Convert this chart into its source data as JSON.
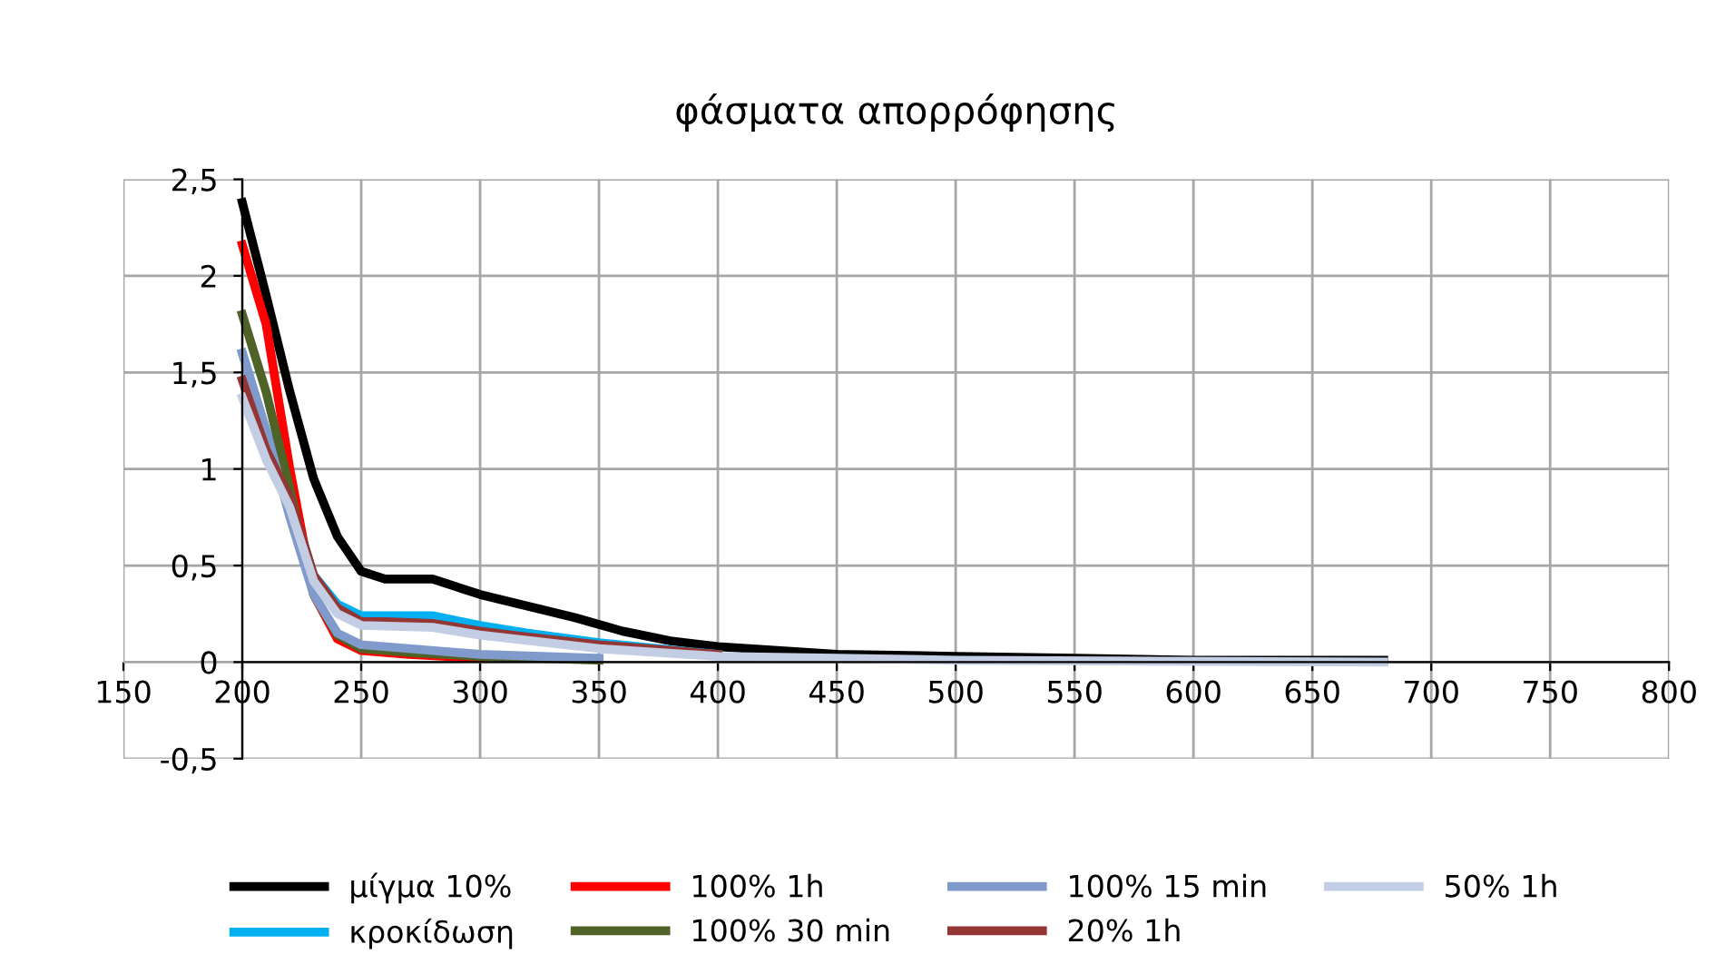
{
  "chart_data": {
    "type": "line",
    "title": "φάσματα απορρόφησης",
    "xlim": [
      150,
      800
    ],
    "xticks": [
      150,
      200,
      250,
      300,
      350,
      400,
      450,
      500,
      550,
      600,
      650,
      700,
      750,
      800
    ],
    "ylim": [
      -0.5,
      2.5
    ],
    "yticks": [
      {
        "value": -0.5,
        "label": "-0,5"
      },
      0,
      {
        "value": 0.5,
        "label": "0,5"
      },
      1,
      {
        "value": 1.5,
        "label": "1,5"
      },
      2,
      {
        "value": 2.5,
        "label": "2,5"
      }
    ],
    "grid": true,
    "legend": "bottom",
    "marker": "none",
    "line_style": "solid",
    "series": [
      {
        "name": "μίγμα 10%",
        "color": "#000000",
        "x": [
          200,
          210,
          220,
          230,
          240,
          250,
          260,
          270,
          280,
          290,
          300,
          320,
          340,
          360,
          380,
          400,
          450,
          500,
          550,
          600,
          680
        ],
        "values": [
          2.38,
          1.9,
          1.4,
          0.95,
          0.65,
          0.47,
          0.43,
          0.43,
          0.43,
          0.39,
          0.35,
          0.29,
          0.23,
          0.16,
          0.11,
          0.08,
          0.04,
          0.03,
          0.02,
          0.01,
          0.01
        ]
      },
      {
        "name": "κροκίδωση",
        "color": "#00b0f0",
        "x": [
          200,
          210,
          220,
          230,
          240,
          250,
          260,
          270,
          280,
          300,
          320,
          350,
          400
        ],
        "values": [
          1.6,
          1.2,
          0.85,
          0.45,
          0.3,
          0.24,
          0.24,
          0.24,
          0.24,
          0.19,
          0.15,
          0.1,
          0.04
        ]
      },
      {
        "name": "100% 1h",
        "color": "#ff0000",
        "x": [
          200,
          210,
          220,
          230,
          240,
          250,
          270,
          300
        ],
        "values": [
          2.16,
          1.75,
          1.0,
          0.35,
          0.12,
          0.06,
          0.04,
          0.02
        ]
      },
      {
        "name": "100% 30 min",
        "color": "#4f6228",
        "x": [
          200,
          210,
          220,
          230,
          240,
          250,
          270,
          300,
          350
        ],
        "values": [
          1.8,
          1.4,
          0.9,
          0.35,
          0.14,
          0.07,
          0.05,
          0.03,
          0.01
        ]
      },
      {
        "name": "100% 15 min",
        "color": "#7f9acb",
        "x": [
          200,
          210,
          220,
          230,
          240,
          250,
          270,
          300,
          350
        ],
        "values": [
          1.6,
          1.2,
          0.75,
          0.35,
          0.15,
          0.09,
          0.07,
          0.04,
          0.02
        ]
      },
      {
        "name": "20% 1h",
        "color": "#943634",
        "x": [
          200,
          210,
          220,
          230,
          240,
          250,
          260,
          280,
          300,
          320,
          350,
          400
        ],
        "values": [
          1.46,
          1.1,
          0.85,
          0.45,
          0.28,
          0.21,
          0.21,
          0.2,
          0.16,
          0.13,
          0.09,
          0.04
        ]
      },
      {
        "name": "50% 1h",
        "color": "#c3cde3",
        "x": [
          200,
          210,
          220,
          230,
          240,
          250,
          280,
          300,
          350,
          400,
          450,
          500,
          680
        ],
        "values": [
          1.37,
          1.05,
          0.8,
          0.42,
          0.25,
          0.19,
          0.18,
          0.14,
          0.07,
          0.03,
          0.02,
          0.01,
          0
        ]
      }
    ]
  }
}
